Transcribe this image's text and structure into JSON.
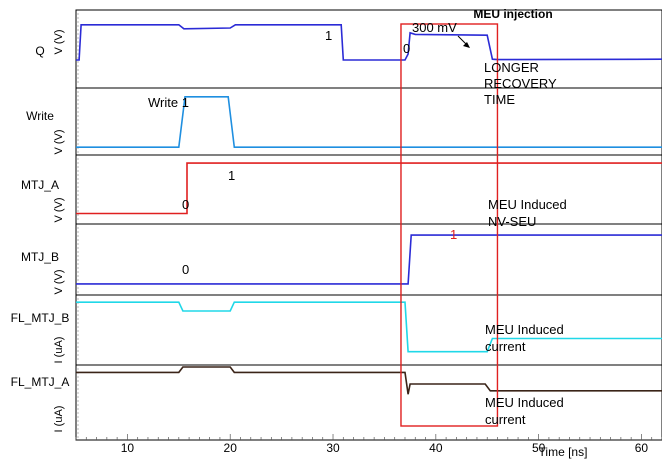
{
  "chart_data": {
    "type": "line",
    "title": "",
    "xlabel": "Time [ns]",
    "xlim": [
      5,
      62
    ],
    "x_ticks": [
      "10",
      "20",
      "30",
      "40",
      "50",
      "60"
    ],
    "x_tick_values": [
      10,
      20,
      30,
      40,
      50,
      60
    ],
    "grid": false,
    "panels": [
      {
        "name": "Q",
        "ylabel": "V (V)",
        "color": "#2b2bd6",
        "ylim": [
          0,
          1
        ],
        "points": [
          [
            5,
            0.1
          ],
          [
            5.3,
            0.1
          ],
          [
            5.5,
            0.98
          ],
          [
            15,
            0.98
          ],
          [
            15.5,
            0.88
          ],
          [
            20,
            0.9
          ],
          [
            20.5,
            0.98
          ],
          [
            30.8,
            0.98
          ],
          [
            31,
            0.1
          ],
          [
            37,
            0.1
          ],
          [
            37.3,
            0.25
          ],
          [
            37.5,
            0.78
          ],
          [
            38,
            0.74
          ],
          [
            45,
            0.72
          ],
          [
            45.5,
            0.12
          ],
          [
            46,
            0.11
          ],
          [
            62,
            0.12
          ]
        ]
      },
      {
        "name": "Write",
        "ylabel": "V (V)",
        "color": "#1f8fe0",
        "ylim": [
          0,
          1
        ],
        "points": [
          [
            5,
            0.05
          ],
          [
            15,
            0.05
          ],
          [
            15.6,
            0.95
          ],
          [
            19.8,
            0.95
          ],
          [
            20.4,
            0.05
          ],
          [
            62,
            0.05
          ]
        ]
      },
      {
        "name": "MTJ_A",
        "ylabel": "V (V)",
        "color": "#e02020",
        "ylim": [
          0,
          1
        ],
        "points": [
          [
            5,
            0.08
          ],
          [
            15.8,
            0.08
          ],
          [
            15.8,
            0.98
          ],
          [
            62,
            0.98
          ]
        ]
      },
      {
        "name": "MTJ_B",
        "ylabel": "V (V)",
        "color": "#2b2bd6",
        "ylim": [
          0,
          1
        ],
        "points": [
          [
            5,
            0.04
          ],
          [
            37.3,
            0.04
          ],
          [
            37.6,
            0.96
          ],
          [
            62,
            0.96
          ]
        ]
      },
      {
        "name": "FL_MTJ_B",
        "ylabel": "I (uA)",
        "color": "#20d8e8",
        "ylim": [
          0,
          1
        ],
        "points": [
          [
            5,
            0.96
          ],
          [
            15,
            0.96
          ],
          [
            15.4,
            0.8
          ],
          [
            20,
            0.8
          ],
          [
            20.4,
            0.96
          ],
          [
            37,
            0.96
          ],
          [
            37.3,
            0.06
          ],
          [
            45,
            0.06
          ],
          [
            45.5,
            0.3
          ],
          [
            62,
            0.3
          ]
        ]
      },
      {
        "name": "FL_MTJ_A",
        "ylabel": "I (uA)",
        "color": "#3a2418",
        "ylim": [
          0,
          1
        ],
        "points": [
          [
            5,
            0.84
          ],
          [
            15,
            0.84
          ],
          [
            15.4,
            1
          ],
          [
            20,
            1
          ],
          [
            20.4,
            0.84
          ],
          [
            37,
            0.84
          ],
          [
            37.3,
            0.2
          ],
          [
            37.5,
            0.5
          ],
          [
            44.8,
            0.5
          ],
          [
            45.3,
            0.3
          ],
          [
            62,
            0.3
          ]
        ]
      }
    ],
    "annotations": [
      {
        "text": "Write 1",
        "color": "#000000"
      },
      {
        "text": "1",
        "color": "#000000"
      },
      {
        "text": "0",
        "color": "#000000"
      },
      {
        "text": "300 mV",
        "color": "#000000"
      },
      {
        "text": "LONGER",
        "color": "#000000"
      },
      {
        "text": "RECOVERY",
        "color": "#000000"
      },
      {
        "text": "TIME",
        "color": "#000000"
      },
      {
        "text": "0",
        "color": "#000000"
      },
      {
        "text": "1",
        "color": "#000000"
      },
      {
        "text": "MEU Induced",
        "color": "#000000"
      },
      {
        "text": "NV-SEU",
        "color": "#000000"
      },
      {
        "text": "1",
        "color": "#e02020"
      },
      {
        "text": "0",
        "color": "#000000"
      },
      {
        "text": "MEU Induced",
        "color": "#000000"
      },
      {
        "text": "current",
        "color": "#000000"
      },
      {
        "text": "MEU Induced",
        "color": "#000000"
      },
      {
        "text": "current",
        "color": "#000000"
      }
    ],
    "highlight": {
      "label": "MEU injection",
      "x_range": [
        37,
        45.8
      ],
      "color": "#e02020"
    }
  }
}
